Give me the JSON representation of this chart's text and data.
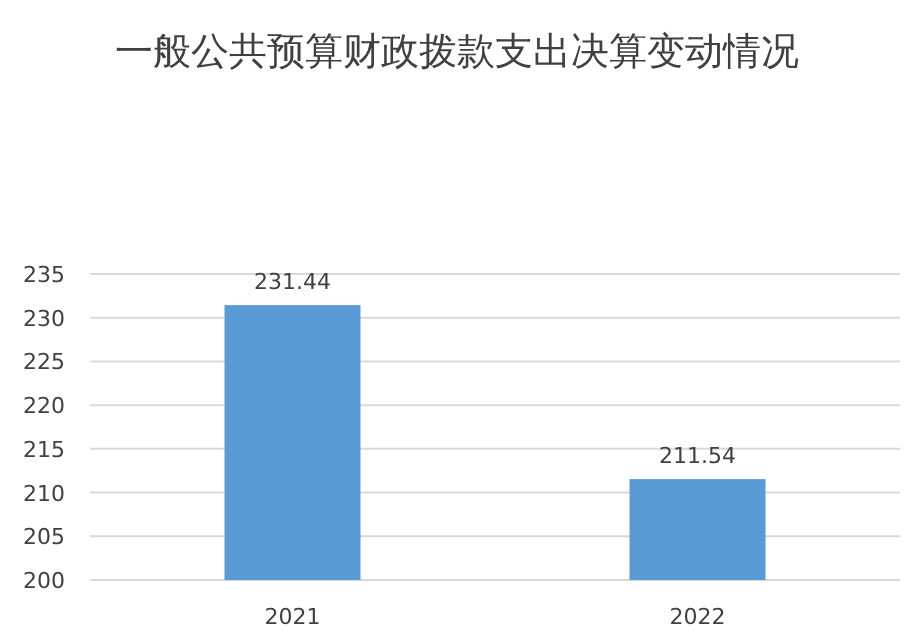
{
  "chart_data": {
    "type": "bar",
    "title": "一般公共预算财政拨款支出决算变动情况",
    "categories": [
      "2021",
      "2022"
    ],
    "values": [
      231.44,
      211.54
    ],
    "color": "#5b9bd5",
    "ylim": [
      200,
      235
    ],
    "yticks": [
      200,
      205,
      210,
      215,
      220,
      225,
      230,
      235
    ],
    "grid": "y",
    "data_labels": true
  }
}
